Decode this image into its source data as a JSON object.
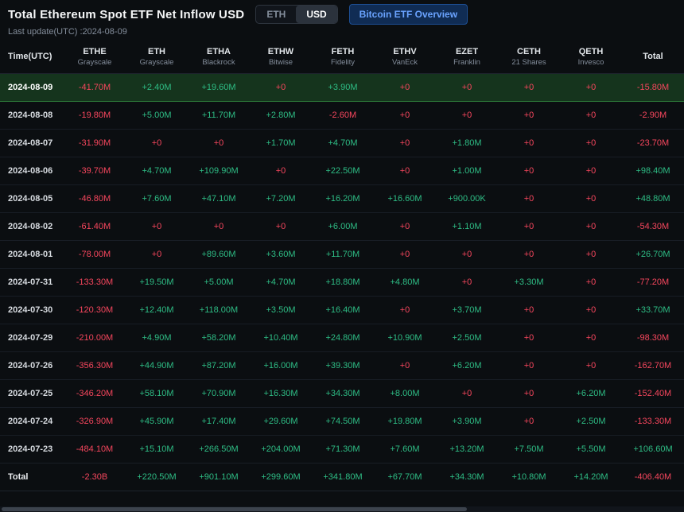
{
  "header": {
    "title": "Total Ethereum Spot ETF Net Inflow USD",
    "toggle": {
      "options": [
        "ETH",
        "USD"
      ],
      "selected": "USD"
    },
    "overview_button": "Bitcoin ETF Overview",
    "last_update": "Last update(UTC) :2024-08-09"
  },
  "colors": {
    "positive": "#2ebd85",
    "negative": "#f6465d",
    "highlight_row_bg": "#15341d",
    "highlight_row_border": "#2e7d3a",
    "accent_blue": "#6aa3ff",
    "background": "#0b0e11"
  },
  "table": {
    "columns": [
      {
        "ticker": "Time(UTC)",
        "issuer": ""
      },
      {
        "ticker": "ETHE",
        "issuer": "Grayscale"
      },
      {
        "ticker": "ETH",
        "issuer": "Grayscale"
      },
      {
        "ticker": "ETHA",
        "issuer": "Blackrock"
      },
      {
        "ticker": "ETHW",
        "issuer": "Bitwise"
      },
      {
        "ticker": "FETH",
        "issuer": "Fidelity"
      },
      {
        "ticker": "ETHV",
        "issuer": "VanEck"
      },
      {
        "ticker": "EZET",
        "issuer": "Franklin"
      },
      {
        "ticker": "CETH",
        "issuer": "21 Shares"
      },
      {
        "ticker": "QETH",
        "issuer": "Invesco"
      },
      {
        "ticker": "Total",
        "issuer": ""
      }
    ],
    "rows": [
      {
        "date": "2024-08-09",
        "highlight": true,
        "is_total": false,
        "values": [
          "-41.70M",
          "+2.40M",
          "+19.60M",
          "+0",
          "+3.90M",
          "+0",
          "+0",
          "+0",
          "+0",
          "-15.80M"
        ]
      },
      {
        "date": "2024-08-08",
        "highlight": false,
        "is_total": false,
        "values": [
          "-19.80M",
          "+5.00M",
          "+11.70M",
          "+2.80M",
          "-2.60M",
          "+0",
          "+0",
          "+0",
          "+0",
          "-2.90M"
        ]
      },
      {
        "date": "2024-08-07",
        "highlight": false,
        "is_total": false,
        "values": [
          "-31.90M",
          "+0",
          "+0",
          "+1.70M",
          "+4.70M",
          "+0",
          "+1.80M",
          "+0",
          "+0",
          "-23.70M"
        ]
      },
      {
        "date": "2024-08-06",
        "highlight": false,
        "is_total": false,
        "values": [
          "-39.70M",
          "+4.70M",
          "+109.90M",
          "+0",
          "+22.50M",
          "+0",
          "+1.00M",
          "+0",
          "+0",
          "+98.40M"
        ]
      },
      {
        "date": "2024-08-05",
        "highlight": false,
        "is_total": false,
        "values": [
          "-46.80M",
          "+7.60M",
          "+47.10M",
          "+7.20M",
          "+16.20M",
          "+16.60M",
          "+900.00K",
          "+0",
          "+0",
          "+48.80M"
        ]
      },
      {
        "date": "2024-08-02",
        "highlight": false,
        "is_total": false,
        "values": [
          "-61.40M",
          "+0",
          "+0",
          "+0",
          "+6.00M",
          "+0",
          "+1.10M",
          "+0",
          "+0",
          "-54.30M"
        ]
      },
      {
        "date": "2024-08-01",
        "highlight": false,
        "is_total": false,
        "values": [
          "-78.00M",
          "+0",
          "+89.60M",
          "+3.60M",
          "+11.70M",
          "+0",
          "+0",
          "+0",
          "+0",
          "+26.70M"
        ]
      },
      {
        "date": "2024-07-31",
        "highlight": false,
        "is_total": false,
        "values": [
          "-133.30M",
          "+19.50M",
          "+5.00M",
          "+4.70M",
          "+18.80M",
          "+4.80M",
          "+0",
          "+3.30M",
          "+0",
          "-77.20M"
        ]
      },
      {
        "date": "2024-07-30",
        "highlight": false,
        "is_total": false,
        "values": [
          "-120.30M",
          "+12.40M",
          "+118.00M",
          "+3.50M",
          "+16.40M",
          "+0",
          "+3.70M",
          "+0",
          "+0",
          "+33.70M"
        ]
      },
      {
        "date": "2024-07-29",
        "highlight": false,
        "is_total": false,
        "values": [
          "-210.00M",
          "+4.90M",
          "+58.20M",
          "+10.40M",
          "+24.80M",
          "+10.90M",
          "+2.50M",
          "+0",
          "+0",
          "-98.30M"
        ]
      },
      {
        "date": "2024-07-26",
        "highlight": false,
        "is_total": false,
        "values": [
          "-356.30M",
          "+44.90M",
          "+87.20M",
          "+16.00M",
          "+39.30M",
          "+0",
          "+6.20M",
          "+0",
          "+0",
          "-162.70M"
        ]
      },
      {
        "date": "2024-07-25",
        "highlight": false,
        "is_total": false,
        "values": [
          "-346.20M",
          "+58.10M",
          "+70.90M",
          "+16.30M",
          "+34.30M",
          "+8.00M",
          "+0",
          "+0",
          "+6.20M",
          "-152.40M"
        ]
      },
      {
        "date": "2024-07-24",
        "highlight": false,
        "is_total": false,
        "values": [
          "-326.90M",
          "+45.90M",
          "+17.40M",
          "+29.60M",
          "+74.50M",
          "+19.80M",
          "+3.90M",
          "+0",
          "+2.50M",
          "-133.30M"
        ]
      },
      {
        "date": "2024-07-23",
        "highlight": false,
        "is_total": false,
        "values": [
          "-484.10M",
          "+15.10M",
          "+266.50M",
          "+204.00M",
          "+71.30M",
          "+7.60M",
          "+13.20M",
          "+7.50M",
          "+5.50M",
          "+106.60M"
        ]
      },
      {
        "date": "Total",
        "highlight": false,
        "is_total": true,
        "values": [
          "-2.30B",
          "+220.50M",
          "+901.10M",
          "+299.60M",
          "+341.80M",
          "+67.70M",
          "+34.30M",
          "+10.80M",
          "+14.20M",
          "-406.40M"
        ]
      }
    ]
  }
}
